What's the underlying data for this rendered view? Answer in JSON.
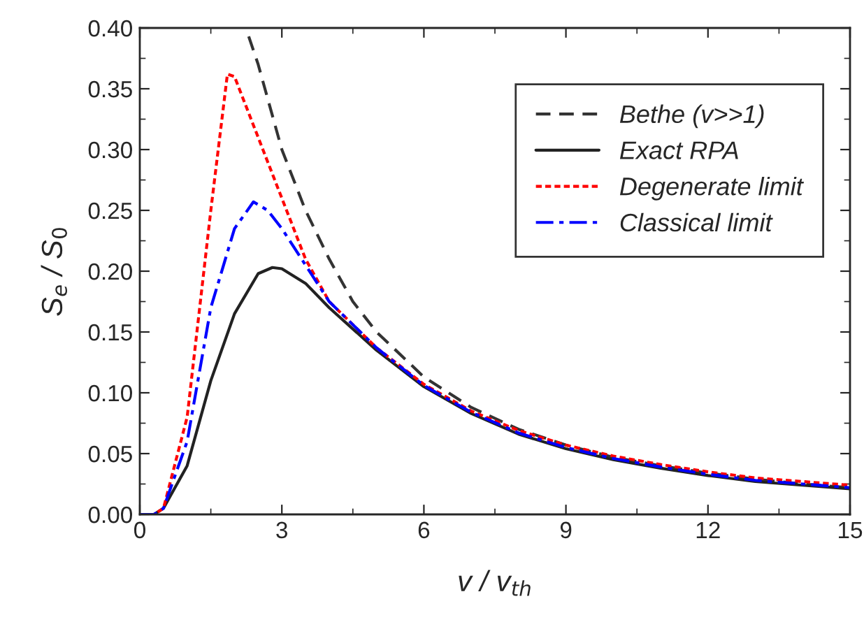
{
  "chart_data": {
    "type": "line",
    "xlabel": "v / v$_{th}$",
    "ylabel": "S$_{e}$ / S$_{0}$",
    "xlim": [
      0,
      15
    ],
    "ylim": [
      0,
      0.4
    ],
    "xticks": [
      0,
      3,
      6,
      9,
      12,
      15
    ],
    "yticks": [
      {
        "value": 0,
        "label": "0.00"
      },
      {
        "value": 0.05,
        "label": "0.05"
      },
      {
        "value": 0.1,
        "label": "0.10"
      },
      {
        "value": 0.15,
        "label": "0.15"
      },
      {
        "value": 0.2,
        "label": "0.20"
      },
      {
        "value": 0.25,
        "label": "0.25"
      },
      {
        "value": 0.3,
        "label": "0.30"
      },
      {
        "value": 0.35,
        "label": "0.35"
      },
      {
        "value": 0.4,
        "label": "0.40"
      }
    ],
    "grid": false,
    "legend": "top right",
    "series": [
      {
        "name": "Bethe (v>>1)",
        "color": "#333333",
        "line_style": "dashed",
        "x": [
          2.3,
          2.5,
          3,
          3.5,
          4,
          4.5,
          5,
          6,
          7,
          8,
          9,
          10,
          11,
          12,
          13,
          14,
          15
        ],
        "values": [
          0.393,
          0.37,
          0.3,
          0.25,
          0.21,
          0.175,
          0.15,
          0.113,
          0.088,
          0.07,
          0.057,
          0.047,
          0.04,
          0.034,
          0.029,
          0.025,
          0.022
        ]
      },
      {
        "name": "Exact RPA",
        "color": "#222222",
        "line_style": "solid",
        "x": [
          0,
          0.3,
          0.5,
          1,
          1.5,
          2,
          2.5,
          2.8,
          3,
          3.5,
          4,
          5,
          6,
          7,
          8,
          9,
          10,
          11,
          12,
          13,
          14,
          15
        ],
        "values": [
          0,
          0.0,
          0.005,
          0.04,
          0.11,
          0.165,
          0.198,
          0.203,
          0.202,
          0.19,
          0.17,
          0.135,
          0.105,
          0.083,
          0.066,
          0.054,
          0.045,
          0.038,
          0.032,
          0.027,
          0.024,
          0.021
        ]
      },
      {
        "name": "Degenerate limit",
        "color": "#ff0000",
        "line_style": "dotted",
        "x": [
          0,
          0.3,
          0.5,
          1,
          1.5,
          1.85,
          2,
          2.5,
          3,
          3.5,
          4,
          5,
          6,
          7,
          8,
          9,
          10,
          11,
          12,
          13,
          14,
          15
        ],
        "values": [
          0,
          0.0,
          0.005,
          0.08,
          0.25,
          0.362,
          0.36,
          0.31,
          0.26,
          0.21,
          0.175,
          0.137,
          0.107,
          0.085,
          0.069,
          0.057,
          0.048,
          0.041,
          0.035,
          0.03,
          0.027,
          0.024
        ]
      },
      {
        "name": "Classical limit",
        "color": "#0000ff",
        "line_style": "dashdot",
        "x": [
          0,
          0.3,
          0.5,
          1,
          1.5,
          2,
          2.4,
          2.7,
          3,
          3.5,
          4,
          5,
          6,
          7,
          8,
          9,
          10,
          11,
          12,
          13,
          14,
          15
        ],
        "values": [
          0,
          0.0,
          0.005,
          0.06,
          0.17,
          0.235,
          0.257,
          0.25,
          0.235,
          0.205,
          0.175,
          0.137,
          0.106,
          0.084,
          0.067,
          0.055,
          0.046,
          0.039,
          0.033,
          0.028,
          0.025,
          0.022
        ]
      }
    ]
  }
}
